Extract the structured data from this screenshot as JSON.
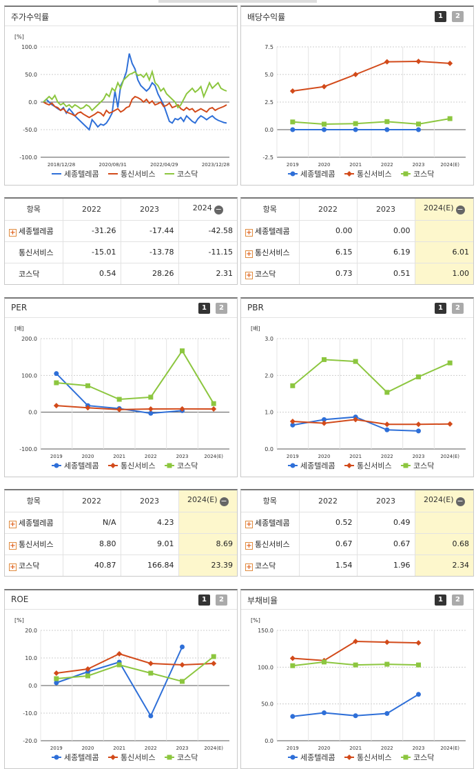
{
  "legend": {
    "s1": "세종텔레콤",
    "s2": "통신서비스",
    "s3": "코스닥"
  },
  "colors": {
    "s1": "#2e6fd8",
    "s2": "#d24a1a",
    "s3": "#8cc63f"
  },
  "pager": {
    "p1": "1",
    "p2": "2"
  },
  "panels": {
    "stock": {
      "title": "주가수익률"
    },
    "div": {
      "title": "배당수익률"
    },
    "per": {
      "title": "PER"
    },
    "pbr": {
      "title": "PBR"
    },
    "roe": {
      "title": "ROE"
    },
    "debt": {
      "title": "부채비율"
    }
  },
  "chart_data": [
    {
      "id": "stock",
      "type": "line",
      "unit": "[%]",
      "ylim": [
        -100,
        100
      ],
      "yticks": [
        "100.0",
        "50.0",
        "0.0",
        "-50.0",
        "-100.0"
      ],
      "xticks": [
        "2018/12/28",
        "2020/08/31",
        "2022/04/29",
        "2023/12/28"
      ],
      "series": [
        {
          "name": "세종텔레콤",
          "values": [
            0,
            5,
            0,
            -5,
            -8,
            -12,
            -15,
            -10,
            -20,
            -12,
            -18,
            -25,
            -30,
            -35,
            -40,
            -45,
            -50,
            -32,
            -38,
            -45,
            -40,
            -42,
            -38,
            -30,
            -20,
            20,
            -10,
            30,
            40,
            55,
            88,
            70,
            60,
            40,
            30,
            25,
            20,
            25,
            35,
            30,
            15,
            5,
            -5,
            -20,
            -35,
            -38,
            -30,
            -32,
            -28,
            -35,
            -25,
            -30,
            -35,
            -38,
            -30,
            -25,
            -28,
            -32,
            -28,
            -25,
            -30,
            -33,
            -35,
            -37,
            -38
          ]
        },
        {
          "name": "통신서비스",
          "values": [
            0,
            -3,
            -5,
            -2,
            -8,
            -10,
            -15,
            -12,
            -18,
            -20,
            -22,
            -25,
            -20,
            -18,
            -22,
            -25,
            -28,
            -25,
            -22,
            -18,
            -20,
            -25,
            -15,
            -20,
            -18,
            -15,
            -12,
            -18,
            -15,
            -10,
            -8,
            5,
            10,
            8,
            5,
            0,
            5,
            -2,
            2,
            -5,
            -3,
            0,
            -8,
            -6,
            -2,
            -10,
            -8,
            -5,
            -12,
            -15,
            -10,
            -14,
            -12,
            -18,
            -15,
            -12,
            -15,
            -18,
            -12,
            -10,
            -15,
            -12,
            -10,
            -8,
            -5
          ]
        },
        {
          "name": "코스닥",
          "values": [
            0,
            5,
            10,
            5,
            12,
            0,
            -5,
            -2,
            -8,
            -5,
            -10,
            -5,
            -8,
            -12,
            -10,
            -5,
            -8,
            -15,
            -10,
            -5,
            0,
            5,
            15,
            10,
            25,
            20,
            35,
            25,
            40,
            45,
            50,
            52,
            55,
            48,
            50,
            45,
            52,
            40,
            55,
            35,
            30,
            20,
            25,
            15,
            10,
            5,
            0,
            -10,
            -5,
            5,
            15,
            20,
            25,
            18,
            22,
            28,
            10,
            22,
            35,
            25,
            30,
            35,
            25,
            22,
            20
          ]
        }
      ]
    },
    {
      "id": "div",
      "type": "line",
      "unit": "",
      "ylim": [
        -2.5,
        7.5
      ],
      "yticks": [
        "7.5",
        "5.0",
        "2.5",
        "0.0",
        "-2.5"
      ],
      "categories": [
        "2019",
        "2020",
        "2021",
        "2022",
        "2023",
        "2024(E)"
      ],
      "series": [
        {
          "name": "세종텔레콤",
          "marker": "circle",
          "values": [
            0,
            0,
            0,
            0,
            0,
            null
          ]
        },
        {
          "name": "통신서비스",
          "marker": "diamond",
          "values": [
            3.5,
            3.9,
            5.0,
            6.15,
            6.19,
            6.01
          ]
        },
        {
          "name": "코스닥",
          "marker": "square",
          "values": [
            0.7,
            0.5,
            0.55,
            0.73,
            0.51,
            1.0
          ]
        }
      ]
    },
    {
      "id": "per",
      "type": "line",
      "unit": "[배]",
      "ylim": [
        -100,
        200
      ],
      "yticks": [
        "200.0",
        "100.0",
        "0.0",
        "-100.0"
      ],
      "categories": [
        "2019",
        "2020",
        "2021",
        "2022",
        "2023",
        "2024(E)"
      ],
      "series": [
        {
          "name": "세종텔레콤",
          "marker": "circle",
          "values": [
            105,
            18,
            10,
            -3,
            4.23,
            null
          ]
        },
        {
          "name": "통신서비스",
          "marker": "diamond",
          "values": [
            18,
            12,
            7,
            8.8,
            9.01,
            8.69
          ]
        },
        {
          "name": "코스닥",
          "marker": "square",
          "values": [
            80,
            72,
            35,
            40.87,
            166.84,
            23.39
          ]
        }
      ]
    },
    {
      "id": "pbr",
      "type": "line",
      "unit": "[배]",
      "ylim": [
        0,
        3
      ],
      "yticks": [
        "3.0",
        "2.0",
        "1.0",
        "0.0"
      ],
      "categories": [
        "2019",
        "2020",
        "2021",
        "2022",
        "2023",
        "2024(E)"
      ],
      "series": [
        {
          "name": "세종텔레콤",
          "marker": "circle",
          "values": [
            0.65,
            0.8,
            0.87,
            0.52,
            0.49,
            null
          ]
        },
        {
          "name": "통신서비스",
          "marker": "diamond",
          "values": [
            0.75,
            0.7,
            0.8,
            0.67,
            0.67,
            0.68
          ]
        },
        {
          "name": "코스닥",
          "marker": "square",
          "values": [
            1.72,
            2.43,
            2.38,
            1.54,
            1.96,
            2.34
          ]
        }
      ]
    },
    {
      "id": "roe",
      "type": "line",
      "unit": "[%]",
      "ylim": [
        -20,
        20
      ],
      "yticks": [
        "20.0",
        "10.0",
        "0.0",
        "-10.0",
        "-20.0"
      ],
      "categories": [
        "2019",
        "2020",
        "2021",
        "2022",
        "2023",
        "2024(E)"
      ],
      "series": [
        {
          "name": "세종텔레콤",
          "marker": "circle",
          "values": [
            1,
            5,
            8.5,
            -11,
            14,
            null
          ]
        },
        {
          "name": "통신서비스",
          "marker": "diamond",
          "values": [
            4.5,
            6,
            11.5,
            8,
            7.5,
            8
          ]
        },
        {
          "name": "코스닥",
          "marker": "square",
          "values": [
            2.5,
            3.5,
            7.5,
            4.5,
            1.5,
            10.5
          ]
        }
      ]
    },
    {
      "id": "debt",
      "type": "line",
      "unit": "[%]",
      "ylim": [
        0,
        150
      ],
      "yticks": [
        "150.0",
        "100.0",
        "50.0",
        "0.0"
      ],
      "categories": [
        "2019",
        "2020",
        "2021",
        "2022",
        "2023",
        "2024(E)"
      ],
      "series": [
        {
          "name": "세종텔레콤",
          "marker": "circle",
          "values": [
            33,
            38,
            34,
            37,
            63,
            null
          ]
        },
        {
          "name": "통신서비스",
          "marker": "diamond",
          "values": [
            112,
            109,
            135,
            134,
            133,
            null
          ]
        },
        {
          "name": "코스닥",
          "marker": "square",
          "values": [
            102,
            107,
            103,
            104,
            103,
            null
          ]
        }
      ]
    }
  ],
  "tables": {
    "stock": {
      "head": [
        "항목",
        "2022",
        "2023",
        "2024"
      ],
      "rows": [
        {
          "name": "세종텔레콤",
          "plus": true,
          "v": [
            "-31.26",
            "-17.44",
            "-42.58"
          ]
        },
        {
          "name": "통신서비스",
          "plus": false,
          "v": [
            "-15.01",
            "-13.78",
            "-11.15"
          ]
        },
        {
          "name": "코스닥",
          "plus": false,
          "v": [
            "0.54",
            "28.26",
            "2.31"
          ]
        }
      ]
    },
    "div": {
      "head": [
        "항목",
        "2022",
        "2023",
        "2024(E)"
      ],
      "rows": [
        {
          "name": "세종텔레콤",
          "plus": true,
          "v": [
            "0.00",
            "0.00",
            ""
          ]
        },
        {
          "name": "통신서비스",
          "plus": true,
          "v": [
            "6.15",
            "6.19",
            "6.01"
          ]
        },
        {
          "name": "코스닥",
          "plus": true,
          "v": [
            "0.73",
            "0.51",
            "1.00"
          ]
        }
      ]
    },
    "per": {
      "head": [
        "항목",
        "2022",
        "2023",
        "2024(E)"
      ],
      "rows": [
        {
          "name": "세종텔레콤",
          "plus": true,
          "v": [
            "N/A",
            "4.23",
            ""
          ]
        },
        {
          "name": "통신서비스",
          "plus": true,
          "v": [
            "8.80",
            "9.01",
            "8.69"
          ]
        },
        {
          "name": "코스닥",
          "plus": true,
          "v": [
            "40.87",
            "166.84",
            "23.39"
          ]
        }
      ]
    },
    "pbr": {
      "head": [
        "항목",
        "2022",
        "2023",
        "2024(E)"
      ],
      "rows": [
        {
          "name": "세종텔레콤",
          "plus": true,
          "v": [
            "0.52",
            "0.49",
            ""
          ]
        },
        {
          "name": "통신서비스",
          "plus": true,
          "v": [
            "0.67",
            "0.67",
            "0.68"
          ]
        },
        {
          "name": "코스닥",
          "plus": true,
          "v": [
            "1.54",
            "1.96",
            "2.34"
          ]
        }
      ]
    }
  }
}
